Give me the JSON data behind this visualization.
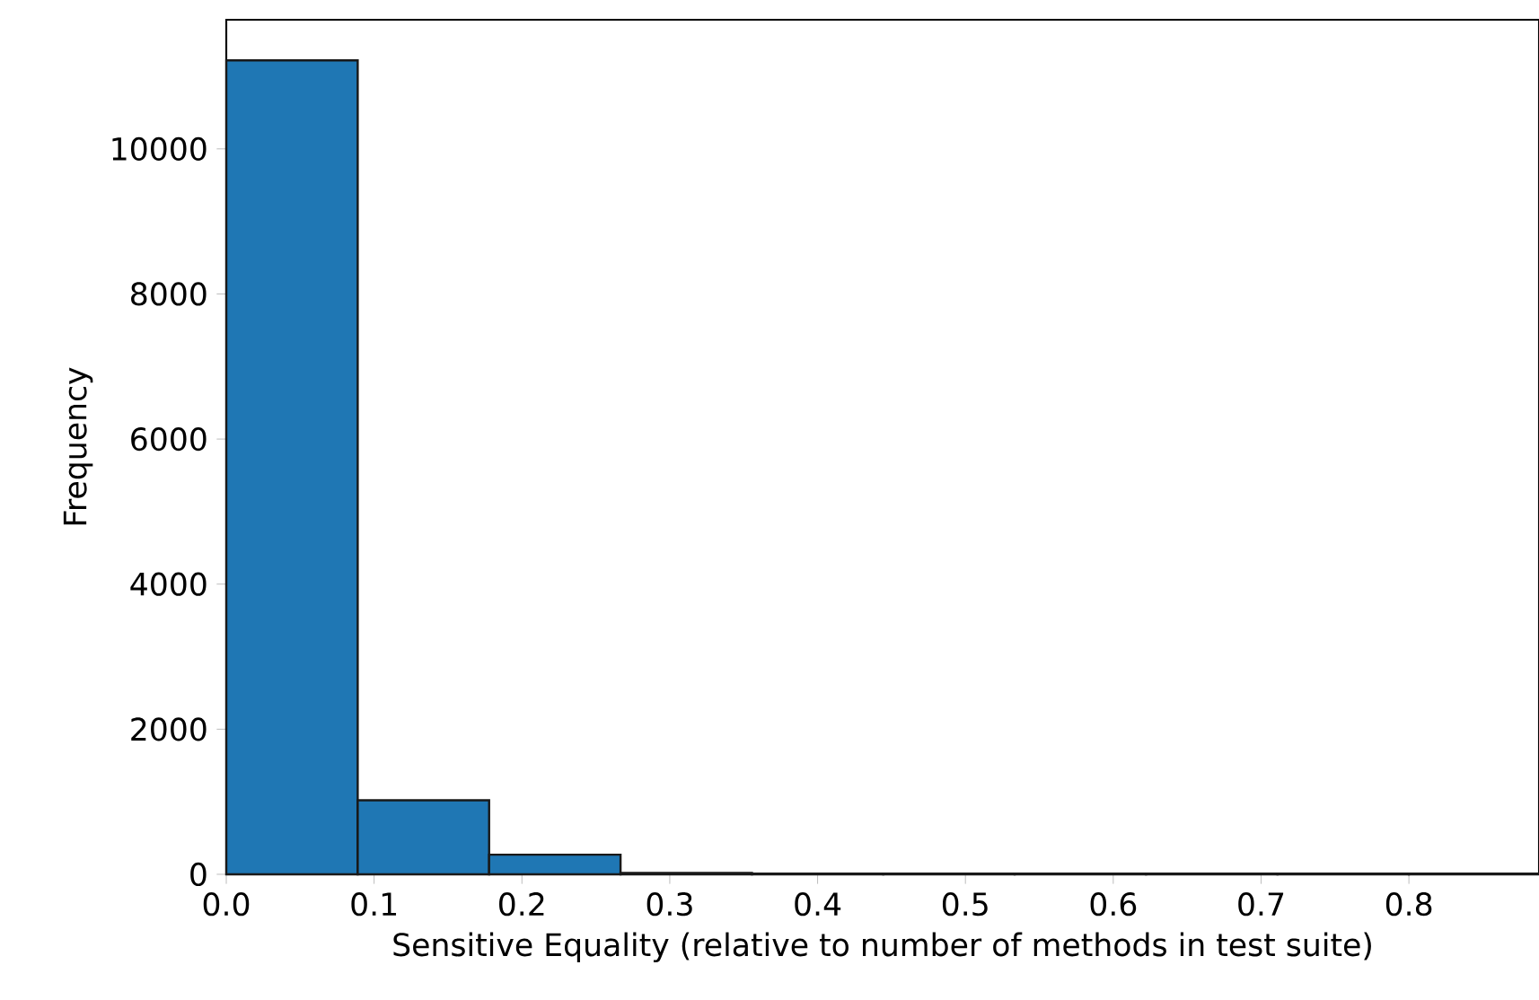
{
  "chart_data": {
    "type": "histogram",
    "xlabel": "Sensitive Equality (relative to number of methods in test suite)",
    "ylabel": "Frequency",
    "bins": [
      0.0,
      0.0889,
      0.1778,
      0.2667,
      0.3556,
      0.4444,
      0.5333,
      0.6222,
      0.7111,
      0.8,
      0.8889
    ],
    "values": [
      11220,
      1020,
      270,
      20,
      10,
      10,
      10,
      10,
      10,
      10
    ],
    "color": "#1f77b4",
    "xlim": [
      0,
      0.888
    ],
    "ylim": [
      0,
      11780
    ],
    "xticks": [
      {
        "value": 0,
        "label": "0.0"
      },
      0.1,
      0.2,
      0.3,
      0.4,
      0.5,
      0.6,
      0.7,
      0.8
    ],
    "yticks": [
      0,
      2000,
      4000,
      6000,
      8000,
      10000
    ],
    "grid": false
  }
}
